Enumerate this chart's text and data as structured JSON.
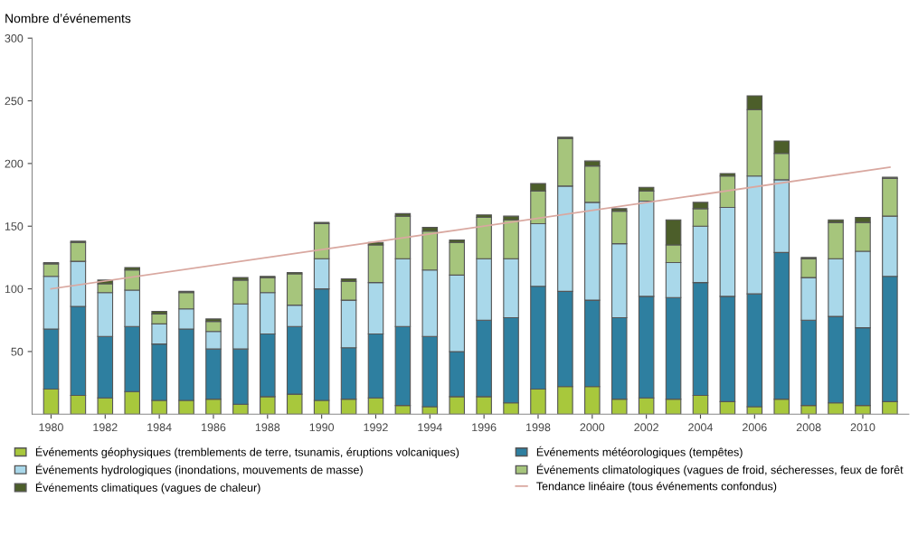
{
  "chart_data": {
    "type": "bar",
    "stacked": true,
    "ylabel": "Nombre d’événements",
    "x": [
      1980,
      1981,
      1982,
      1983,
      1984,
      1985,
      1986,
      1987,
      1988,
      1989,
      1990,
      1991,
      1992,
      1993,
      1994,
      1995,
      1996,
      1997,
      1998,
      1999,
      2000,
      2001,
      2002,
      2003,
      2004,
      2005,
      2006,
      2007,
      2008,
      2009,
      2010,
      2011
    ],
    "xlim": [
      1979.3,
      2011.7
    ],
    "xticks": [
      1980,
      1982,
      1984,
      1986,
      1988,
      1990,
      1992,
      1994,
      1996,
      1998,
      2000,
      2002,
      2004,
      2006,
      2008,
      2010
    ],
    "ylim": [
      0,
      300
    ],
    "yticks": [
      50,
      100,
      150,
      200,
      250,
      300
    ],
    "grid": false,
    "legend": "bottom",
    "series": [
      {
        "name": "Événements géophysiques (tremblements de terre, tsunamis, éruptions volcaniques)",
        "color": "#a8c83c",
        "values": [
          20,
          15,
          13,
          18,
          11,
          11,
          12,
          8,
          14,
          16,
          11,
          12,
          13,
          7,
          6,
          14,
          14,
          9,
          20,
          22,
          22,
          12,
          13,
          12,
          15,
          10,
          6,
          12,
          7,
          9,
          7,
          10
        ]
      },
      {
        "name": "Événements météorologiques (tempêtes)",
        "color": "#2e7fa0",
        "values": [
          48,
          71,
          49,
          52,
          45,
          57,
          40,
          44,
          50,
          54,
          89,
          41,
          51,
          63,
          56,
          36,
          61,
          68,
          82,
          76,
          69,
          65,
          81,
          81,
          90,
          84,
          90,
          117,
          68,
          69,
          62,
          100
        ]
      },
      {
        "name": "Événements hydrologiques (inondations, mouvements de masse)",
        "color": "#a9d8ea",
        "values": [
          42,
          36,
          35,
          29,
          16,
          16,
          14,
          36,
          33,
          17,
          24,
          38,
          41,
          54,
          53,
          61,
          49,
          47,
          50,
          84,
          78,
          59,
          76,
          28,
          45,
          71,
          94,
          58,
          34,
          46,
          61,
          48
        ]
      },
      {
        "name": "Événements climatologiques (vagues de froid, sécheresses, feux de forêt",
        "color": "#a6c57c",
        "values": [
          10,
          15,
          7,
          16,
          8,
          13,
          8,
          19,
          12,
          25,
          28,
          15,
          30,
          34,
          31,
          26,
          33,
          31,
          26,
          38,
          29,
          26,
          8,
          14,
          14,
          25,
          53,
          21,
          15,
          29,
          23,
          30
        ]
      },
      {
        "name": "Événements climatiques (vagues de chaleur)",
        "color": "#4c5e2a",
        "values": [
          1,
          1,
          3,
          2,
          2,
          1,
          2,
          2,
          1,
          1,
          1,
          2,
          2,
          2,
          3,
          2,
          2,
          3,
          6,
          1,
          4,
          2,
          3,
          20,
          5,
          2,
          11,
          10,
          1,
          2,
          4,
          1
        ]
      },
      {
        "name": "Tendance linéaire (tous événements confondus)",
        "type": "line",
        "color": "#d9a8a0",
        "x": [
          1980,
          2011
        ],
        "values": [
          100,
          197
        ]
      }
    ]
  }
}
